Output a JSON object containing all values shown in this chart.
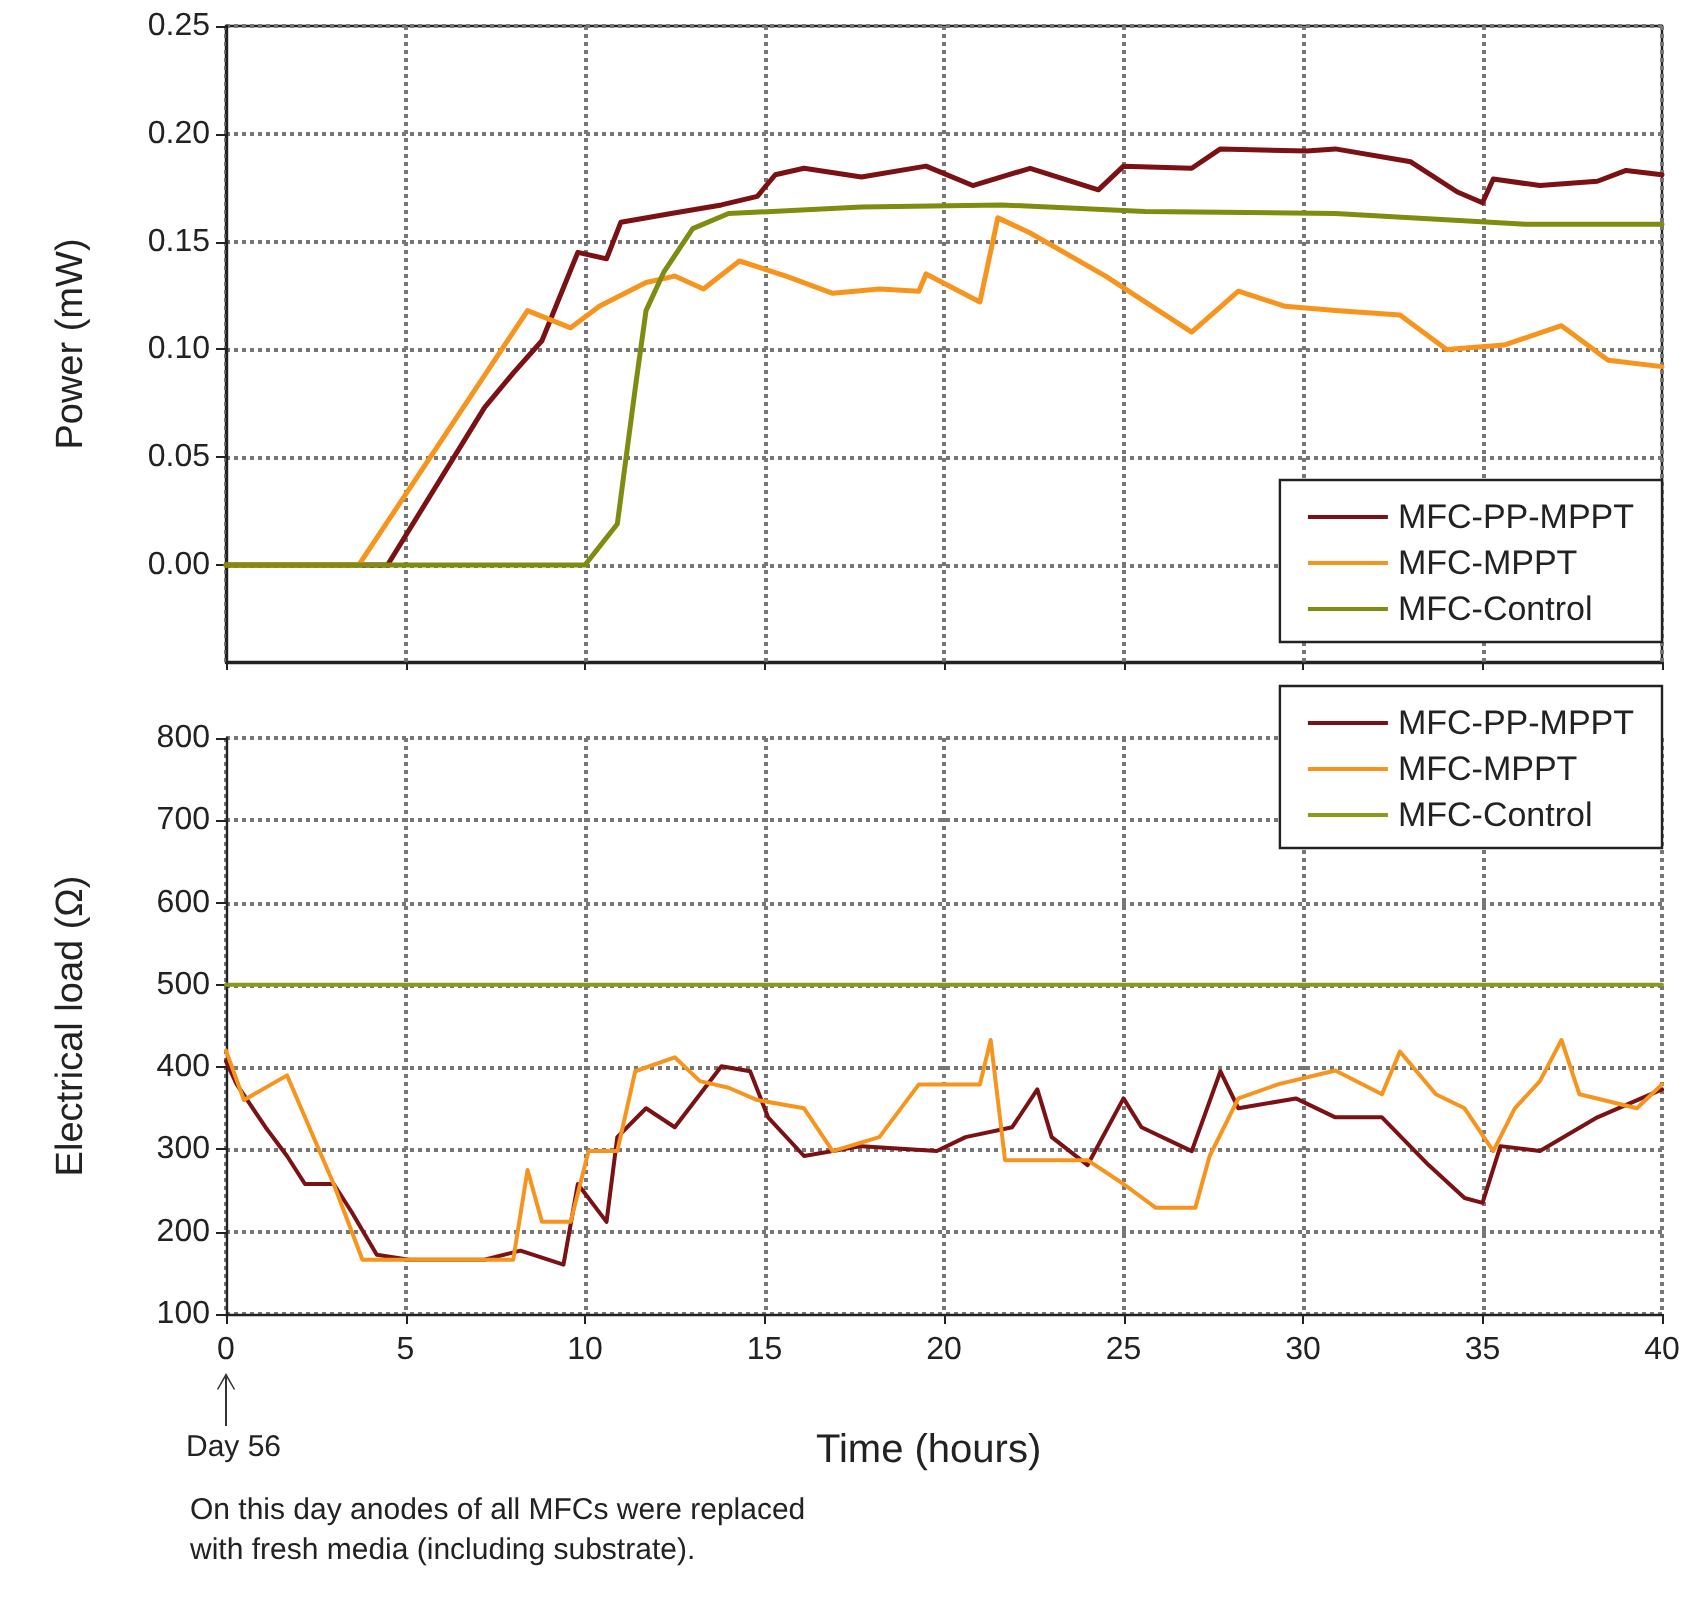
{
  "chart_data": [
    {
      "type": "line",
      "ylabel": "Power (mW)",
      "xlim": [
        0,
        40
      ],
      "xticks": [
        0,
        5,
        10,
        15,
        20,
        25,
        30,
        35,
        40
      ],
      "ylim": [
        -0.045,
        0.25
      ],
      "yticks": [
        {
          "value": 0,
          "label": "0.00"
        },
        {
          "value": 0.05,
          "label": "0.05"
        },
        {
          "value": 0.1,
          "label": "0.10"
        },
        {
          "value": 0.15,
          "label": "0.15"
        },
        {
          "value": 0.2,
          "label": "0.20"
        },
        {
          "value": 0.25,
          "label": "0.25"
        }
      ],
      "grid": true,
      "legend": "bottom right",
      "tick_labels": "y",
      "marker": "none",
      "line_style": "solid",
      "series": [
        {
          "name": "MFC-PP-MPPT",
          "color": "#7b1113",
          "x": [
            0,
            4.5,
            7.2,
            8,
            8.8,
            9.8,
            10.6,
            11,
            12.4,
            13.8,
            14.8,
            15.3,
            16.1,
            17.7,
            19.5,
            20.8,
            22.4,
            24.3,
            25,
            26.9,
            27.7,
            30.1,
            30.9,
            33,
            34.3,
            35,
            35.3,
            36.6,
            38.2,
            39,
            40
          ],
          "values": [
            0,
            0,
            0.073,
            0.089,
            0.104,
            0.145,
            0.142,
            0.159,
            0.163,
            0.167,
            0.171,
            0.181,
            0.184,
            0.18,
            0.185,
            0.176,
            0.184,
            0.174,
            0.185,
            0.184,
            0.193,
            0.192,
            0.193,
            0.187,
            0.173,
            0.168,
            0.179,
            0.176,
            0.178,
            0.183,
            0.181
          ]
        },
        {
          "name": "MFC-MPPT",
          "color": "#f7941d",
          "x": [
            0,
            3.7,
            8.4,
            9.6,
            10.4,
            11.7,
            12.5,
            13.3,
            14.3,
            15.6,
            16.9,
            18.2,
            19.3,
            19.5,
            21,
            21.5,
            22.4,
            24.5,
            26.9,
            28.2,
            29.5,
            30.9,
            32.7,
            34,
            35.6,
            37.2,
            38.5,
            40
          ],
          "values": [
            0,
            0,
            0.118,
            0.11,
            0.12,
            0.131,
            0.134,
            0.128,
            0.141,
            0.134,
            0.126,
            0.128,
            0.127,
            0.135,
            0.122,
            0.161,
            0.154,
            0.134,
            0.108,
            0.127,
            0.12,
            0.118,
            0.116,
            0.1,
            0.102,
            0.111,
            0.095,
            0.092
          ]
        },
        {
          "name": "MFC-Control",
          "color": "#7f8c10",
          "x": [
            0,
            10,
            10.9,
            11.4,
            11.7,
            12.2,
            13,
            14,
            17.7,
            21.6,
            25.6,
            30.9,
            36.2,
            40
          ],
          "values": [
            0,
            0,
            0.019,
            0.082,
            0.118,
            0.136,
            0.156,
            0.163,
            0.166,
            0.167,
            0.164,
            0.163,
            0.158,
            0.158
          ]
        }
      ]
    },
    {
      "type": "line",
      "xlabel": "Time (hours)",
      "ylabel": "Electrical load (Ω)",
      "xlim": [
        0,
        40
      ],
      "xticks": [
        0,
        5,
        10,
        15,
        20,
        25,
        30,
        35,
        40
      ],
      "ylim": [
        100,
        800
      ],
      "yticks": [
        100,
        200,
        300,
        400,
        500,
        600,
        700,
        800
      ],
      "grid": true,
      "legend": "top right",
      "marker": "none",
      "line_style": "solid",
      "annotations": [
        "Day 56",
        "On this day anodes of all MFCs were replaced\nwith fresh media (including substrate)."
      ],
      "series": [
        {
          "name": "MFC-PP-MPPT",
          "color": "#7b1113",
          "x": [
            0,
            0.3,
            1.1,
            1.7,
            2.2,
            3,
            3.5,
            4.2,
            5.1,
            7.2,
            8.2,
            9.4,
            9.8,
            10.6,
            10.9,
            11.7,
            12.5,
            13.8,
            14.6,
            15.1,
            16.1,
            17.7,
            19.8,
            20.6,
            21.9,
            22.6,
            23,
            24,
            25,
            25.5,
            26.9,
            27.7,
            28.2,
            29.8,
            30.9,
            32.2,
            33.5,
            34.5,
            35,
            35.5,
            36.6,
            38.2,
            40
          ],
          "values": [
            407,
            379,
            327,
            292,
            258,
            258,
            224,
            172,
            166,
            166,
            177,
            160,
            258,
            212,
            315,
            350,
            327,
            401,
            395,
            339,
            292,
            304,
            298,
            315,
            327,
            373,
            315,
            281,
            362,
            327,
            298,
            395,
            350,
            362,
            339,
            339,
            281,
            241,
            235,
            304,
            298,
            339,
            373
          ]
        },
        {
          "name": "MFC-MPPT",
          "color": "#f7941d",
          "x": [
            0,
            0.5,
            1.7,
            2.2,
            3,
            3.8,
            8,
            8.4,
            8.8,
            9.6,
            10.1,
            10.9,
            11.4,
            12.5,
            13.2,
            14,
            14.8,
            16.1,
            16.9,
            18.2,
            19.3,
            21,
            21.3,
            21.7,
            24,
            25,
            25.9,
            27,
            27.4,
            28.2,
            29.3,
            30.9,
            32.2,
            32.7,
            33.7,
            34.5,
            35.3,
            35.9,
            36.6,
            37.2,
            37.7,
            39.3,
            40
          ],
          "values": [
            420,
            360,
            390,
            339,
            258,
            166,
            166,
            275,
            212,
            212,
            298,
            298,
            395,
            412,
            383,
            375,
            360,
            350,
            298,
            315,
            379,
            379,
            433,
            287,
            287,
            258,
            229,
            229,
            292,
            362,
            379,
            396,
            367,
            419,
            367,
            350,
            298,
            350,
            383,
            433,
            367,
            350,
            379
          ]
        },
        {
          "name": "MFC-Control",
          "color": "#8a9a1a",
          "x": [
            0,
            40
          ],
          "values": [
            500,
            500
          ]
        }
      ]
    }
  ]
}
